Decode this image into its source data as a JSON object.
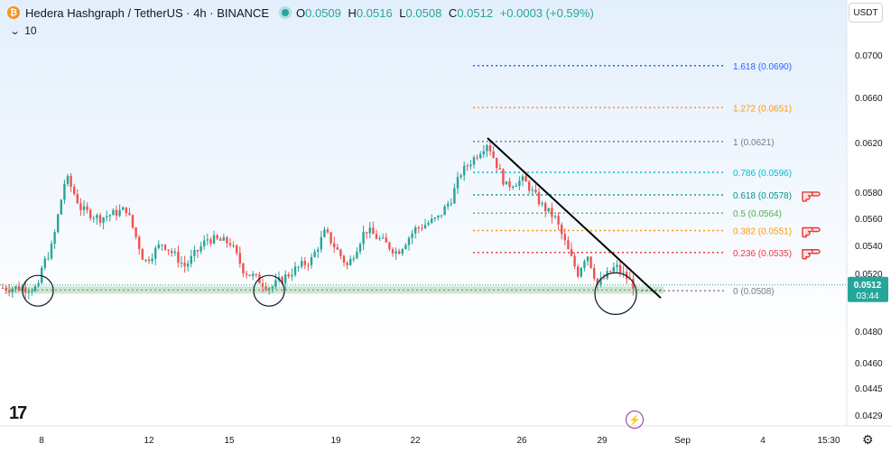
{
  "header": {
    "coin_glyph": "₿",
    "symbol": "Hedera Hashgraph / TetherUS · 4h · BINANCE",
    "o_label": "O",
    "o_value": "0.0509",
    "h_label": "H",
    "h_value": "0.0516",
    "l_label": "L",
    "l_value": "0.0508",
    "c_label": "C",
    "c_value": "0.0512",
    "change": "+0.0003 (+0.59%)",
    "indicator": "10",
    "currency_button": "USDT"
  },
  "colors": {
    "up": "#26a69a",
    "down": "#ef5350",
    "trendline": "#000000",
    "support_zone": "#a5d6a7",
    "price_badge": "#26a69a"
  },
  "icons": {
    "logo": "tradingview-logo",
    "bolt": "lightning-icon",
    "settings": "gear-icon",
    "dropdown": "chevron-down-icon"
  },
  "price_badge": {
    "price": "0.0512",
    "countdown": "03:44"
  },
  "chart_data": {
    "type": "candlestick",
    "y_axis_labels": [
      "0.0700",
      "0.0660",
      "0.0620",
      "0.0580",
      "0.0560",
      "0.0540",
      "0.0520",
      "0.0480",
      "0.0460",
      "0.0445",
      "0.0429"
    ],
    "x_axis_labels": [
      "8",
      "12",
      "15",
      "19",
      "22",
      "26",
      "29",
      "Sep",
      "4",
      "15:30"
    ],
    "fib_levels": [
      {
        "ratio": "1.618",
        "price": "0.0690",
        "color": "#2962ff"
      },
      {
        "ratio": "1.272",
        "price": "0.0651",
        "color": "#ff9800"
      },
      {
        "ratio": "1",
        "price": "0.0621",
        "color": "#787b86"
      },
      {
        "ratio": "0.786",
        "price": "0.0596",
        "color": "#00bcd4"
      },
      {
        "ratio": "0.618",
        "price": "0.0578",
        "color": "#009688"
      },
      {
        "ratio": "0.5",
        "price": "0.0564",
        "color": "#4caf50"
      },
      {
        "ratio": "0.382",
        "price": "0.0551",
        "color": "#ff9800"
      },
      {
        "ratio": "0.236",
        "price": "0.0535",
        "color": "#f23645"
      },
      {
        "ratio": "0",
        "price": "0.0508",
        "color": "#787b86"
      }
    ],
    "anchors": [
      {
        "x": 45,
        "y": 0.0567
      },
      {
        "x": 45,
        "y": 0.0522
      },
      {
        "x": 58,
        "y": 0.054
      },
      {
        "x": 73,
        "y": 0.0593
      },
      {
        "x": 90,
        "y": 0.0567
      },
      {
        "x": 110,
        "y": 0.056
      },
      {
        "x": 140,
        "y": 0.0567
      },
      {
        "x": 160,
        "y": 0.0528
      },
      {
        "x": 180,
        "y": 0.0542
      },
      {
        "x": 205,
        "y": 0.0525
      },
      {
        "x": 230,
        "y": 0.0545
      },
      {
        "x": 255,
        "y": 0.0542
      },
      {
        "x": 270,
        "y": 0.0522
      },
      {
        "x": 300,
        "y": 0.051
      },
      {
        "x": 325,
        "y": 0.0522
      },
      {
        "x": 345,
        "y": 0.053
      },
      {
        "x": 360,
        "y": 0.055
      },
      {
        "x": 385,
        "y": 0.0525
      },
      {
        "x": 405,
        "y": 0.0552
      },
      {
        "x": 440,
        "y": 0.0535
      },
      {
        "x": 460,
        "y": 0.0552
      },
      {
        "x": 485,
        "y": 0.056
      },
      {
        "x": 500,
        "y": 0.0575
      },
      {
        "x": 510,
        "y": 0.0595
      },
      {
        "x": 540,
        "y": 0.062
      },
      {
        "x": 560,
        "y": 0.0585
      },
      {
        "x": 580,
        "y": 0.059
      },
      {
        "x": 600,
        "y": 0.057
      },
      {
        "x": 615,
        "y": 0.056
      },
      {
        "x": 630,
        "y": 0.0535
      },
      {
        "x": 640,
        "y": 0.052
      },
      {
        "x": 650,
        "y": 0.0535
      },
      {
        "x": 662,
        "y": 0.0512
      },
      {
        "x": 682,
        "y": 0.0525
      },
      {
        "x": 705,
        "y": 0.051
      }
    ],
    "support_zone": {
      "from": 0.0506,
      "to": 0.0511
    },
    "trendline": {
      "from": {
        "x": 540,
        "y": 0.0624
      },
      "to": {
        "x": 732,
        "y": 0.0503
      }
    },
    "markers": [
      {
        "x": 42,
        "y": 0.0508
      },
      {
        "x": 298,
        "y": 0.0508
      },
      {
        "x": 682,
        "y": 0.0506
      }
    ],
    "pointer_levels": [
      "0.618",
      "0.382",
      "0.236"
    ]
  }
}
